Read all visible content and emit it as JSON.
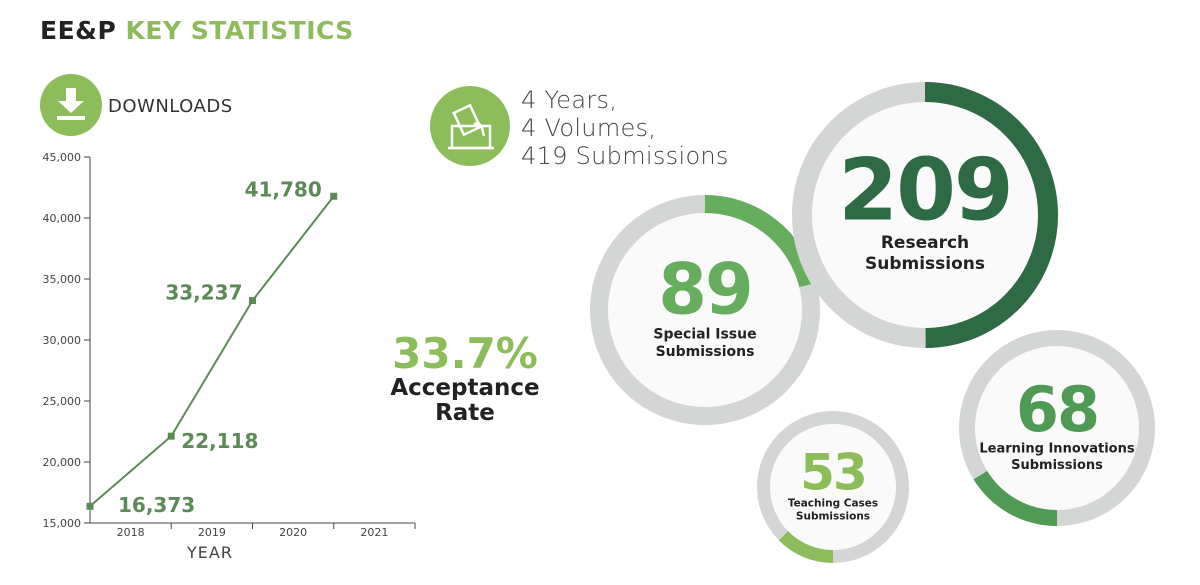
{
  "header": {
    "title_part1": "EE&P",
    "title_part2": "KEY STATISTICS"
  },
  "downloads": {
    "label": "DOWNLOADS",
    "icon": "download-icon"
  },
  "summary": {
    "icon": "ballot-box-icon",
    "line1": "4 Years,",
    "line2": "4 Volumes,",
    "line3": "419 Submissions"
  },
  "acceptance": {
    "value": "33.7%",
    "label1": "Acceptance",
    "label2": "Rate"
  },
  "colors": {
    "dark_green": "#2e6a43",
    "mid_green": "#4f9a55",
    "light_green": "#8cbd5a",
    "line_green": "#5a8b55",
    "ring_gray": "#d4d6d6",
    "inner_fill": "#fafafa"
  },
  "chart_data": [
    {
      "type": "line",
      "x": [
        "2018",
        "2019",
        "2020",
        "2021"
      ],
      "values": [
        16373,
        22118,
        33237,
        41780
      ],
      "value_labels": [
        "16,373",
        "22,118",
        "33,237",
        "41,780"
      ],
      "xlabel": "YEAR",
      "ylim": [
        15000,
        45000
      ],
      "yticks": [
        15000,
        20000,
        25000,
        30000,
        35000,
        40000,
        45000
      ],
      "ytick_labels": [
        "15,000",
        "20,000",
        "25,000",
        "30,000",
        "35,000",
        "40,000",
        "45,000"
      ],
      "grid": false
    },
    {
      "type": "pie",
      "total": 419,
      "categories": [
        "Research Submissions",
        "Special Issue Submissions",
        "Learning Innovations Submissions",
        "Teaching Cases Submissions"
      ],
      "values": [
        209,
        89,
        68,
        53
      ],
      "rings": [
        {
          "value": "209",
          "label1": "Research",
          "label2": "Submissions",
          "fraction": 0.499,
          "color": "#2e6a43"
        },
        {
          "value": "89",
          "label1": "Special Issue",
          "label2": "Submissions",
          "fraction": 0.212,
          "color": "#66ae5e"
        },
        {
          "value": "68",
          "label1": "Learning Innovations",
          "label2": "Submissions",
          "fraction": 0.162,
          "color": "#4f9a55"
        },
        {
          "value": "53",
          "label1": "Teaching Cases",
          "label2": "Submissions",
          "fraction": 0.126,
          "color": "#8cbd5a"
        }
      ]
    }
  ]
}
